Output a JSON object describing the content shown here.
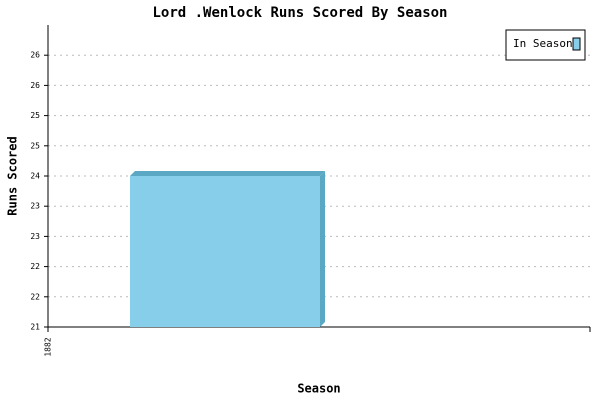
{
  "chart_data": {
    "type": "bar",
    "title": "Lord .Wenlock Runs Scored By Season",
    "x_label": "Season",
    "y_label": "Runs Scored",
    "categories": [
      "1882"
    ],
    "series": [
      {
        "name": "In Season",
        "color": "#87ceeb",
        "values": [
          24
        ]
      }
    ],
    "ylim": [
      21,
      27
    ],
    "yticks": [
      21,
      {
        "value": 21.6,
        "label": "22"
      },
      {
        "value": 22.2,
        "label": "22"
      },
      {
        "value": 22.8,
        "label": "23"
      },
      {
        "value": 23.4,
        "label": "23"
      },
      24,
      {
        "value": 24.6,
        "label": "25"
      },
      {
        "value": 25.2,
        "label": "25"
      },
      {
        "value": 25.8,
        "label": "26"
      },
      {
        "value": 26.4,
        "label": "26"
      }
    ],
    "grid": true,
    "legend": "top-right"
  }
}
